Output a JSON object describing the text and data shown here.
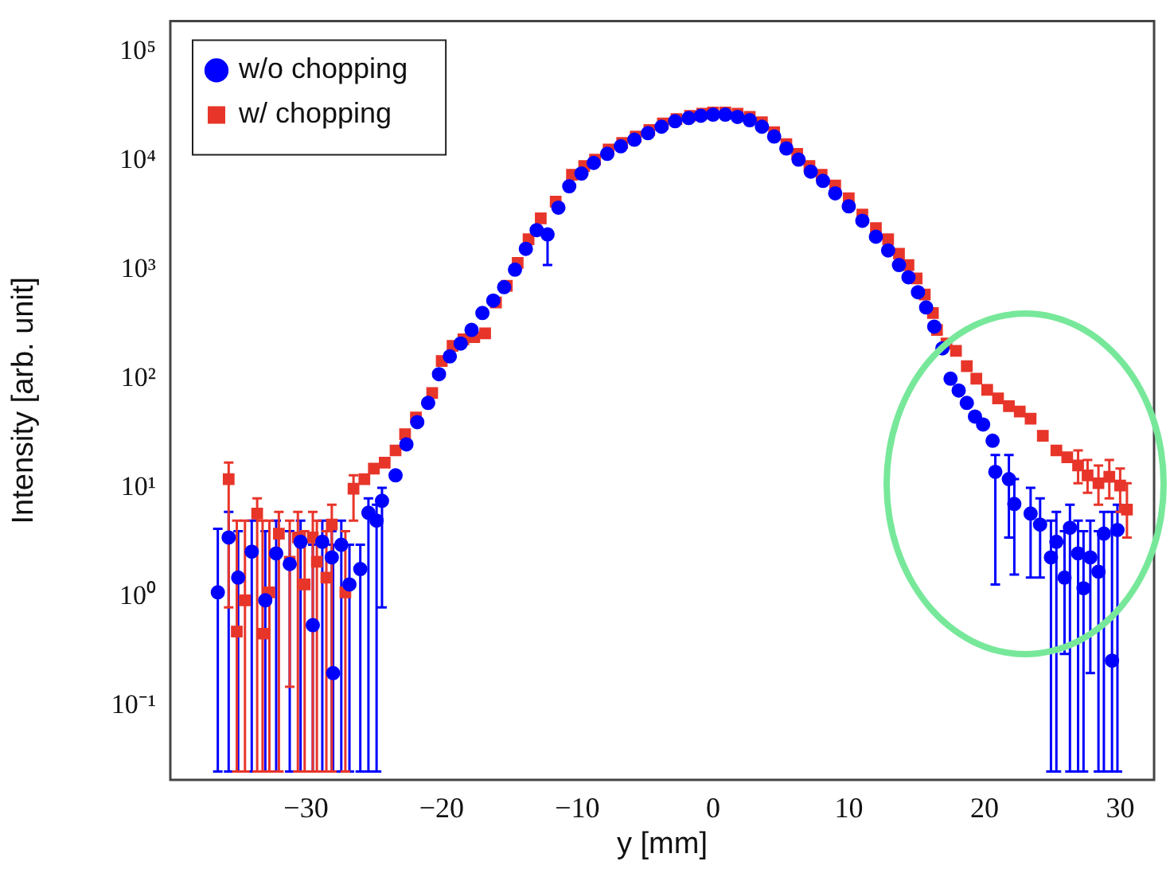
{
  "chart_data": {
    "type": "scatter",
    "xlabel": "y [mm]",
    "ylabel": "Intensity [arb. unit]",
    "log": "y",
    "xlim": [
      -40,
      32.5
    ],
    "ylim": [
      0.021,
      190000
    ],
    "xticks": [
      {
        "value": -30,
        "label": "−30"
      },
      {
        "value": -20,
        "label": "−20"
      },
      {
        "value": -10,
        "label": "−10"
      },
      0,
      10,
      20,
      30
    ],
    "yticks": [
      {
        "value": 0.1,
        "label": "10⁻¹"
      },
      {
        "value": 1,
        "label": "10⁰"
      },
      {
        "value": 10,
        "label": "10¹"
      },
      {
        "value": 100,
        "label": "10²"
      },
      {
        "value": 1000,
        "label": "10³"
      },
      {
        "value": 10000,
        "label": "10⁴"
      },
      {
        "value": 100000,
        "label": "10⁵"
      }
    ],
    "grid": false,
    "legend": "top left",
    "series": [
      {
        "name": "w/o chopping",
        "color": "#0000ff",
        "marker": "circle",
        "x": [
          -36.5,
          -35.7,
          -35.0,
          -34.0,
          -33.0,
          -32.2,
          -31.2,
          -30.4,
          -29.5,
          -28.8,
          -28.1,
          -28.0,
          -27.4,
          -26.8,
          -26.0,
          -25.4,
          -24.8,
          -24.4,
          -23.4,
          -22.6,
          -21.8,
          -21.0,
          -20.2,
          -19.4,
          -18.6,
          -17.8,
          -17.0,
          -16.2,
          -15.4,
          -14.6,
          -13.8,
          -13.0,
          -12.2,
          -11.4,
          -10.6,
          -9.7,
          -8.8,
          -7.8,
          -6.8,
          -5.8,
          -4.8,
          -3.8,
          -2.8,
          -1.8,
          -0.9,
          0,
          0.9,
          1.8,
          2.7,
          3.6,
          4.5,
          5.4,
          6.3,
          7.2,
          8.1,
          9.0,
          10.0,
          11.0,
          12.0,
          12.9,
          13.7,
          14.4,
          15.1,
          15.7,
          16.3,
          16.9,
          17.5,
          18.1,
          18.7,
          19.3,
          19.9,
          20.6,
          20.8,
          21.8,
          22.2,
          23.4,
          24.1,
          24.9,
          25.3,
          25.9,
          26.3,
          26.9,
          27.3,
          27.8,
          28.4,
          28.8,
          29.4,
          29.8
        ],
        "values": [
          1.1,
          3.5,
          1.5,
          2.6,
          0.93,
          2.5,
          2.0,
          3.2,
          0.55,
          3.2,
          2.3,
          0.2,
          3.0,
          1.3,
          1.8,
          5.9,
          5.0,
          7.6,
          13,
          25,
          40,
          60,
          110,
          160,
          210,
          280,
          400,
          520,
          690,
          1000,
          1550,
          2300,
          2100,
          3700,
          5800,
          7600,
          9500,
          11500,
          13500,
          15500,
          17800,
          20400,
          22900,
          24500,
          25700,
          26300,
          26300,
          25100,
          23400,
          20400,
          16600,
          12900,
          10200,
          7900,
          6500,
          5000,
          3800,
          2800,
          2000,
          1500,
          1100,
          850,
          620,
          450,
          300,
          190,
          100,
          78,
          60,
          45,
          38,
          27,
          14,
          12,
          7.1,
          5.8,
          4.6,
          2.3,
          3.2,
          1.5,
          4.3,
          2.5,
          1.2,
          2.3,
          1.7,
          3.8,
          0.26,
          4.1
        ],
        "errors": [
          [
            0.025,
            4.2
          ],
          [
            0.025,
            6
          ],
          [
            0.025,
            4
          ],
          [
            0.025,
            5
          ],
          [
            0.025,
            4
          ],
          [
            0.025,
            5
          ],
          [
            0.025,
            4
          ],
          [
            0.025,
            5
          ],
          [
            0.025,
            3
          ],
          [
            0.025,
            5
          ],
          [
            0.025,
            4
          ],
          [
            0.025,
            3
          ],
          [
            0.025,
            5
          ],
          [
            0.025,
            3
          ],
          [
            0.025,
            3
          ],
          [
            0.025,
            8
          ],
          [
            0.025,
            7
          ],
          [
            0.8,
            10
          ],
          null,
          null,
          null,
          null,
          null,
          null,
          null,
          null,
          null,
          null,
          null,
          null,
          null,
          null,
          [
            1100,
            2300
          ],
          null,
          null,
          null,
          null,
          null,
          null,
          null,
          null,
          null,
          null,
          null,
          null,
          null,
          null,
          null,
          null,
          null,
          null,
          null,
          null,
          null,
          null,
          null,
          null,
          null,
          null,
          null,
          null,
          null,
          null,
          null,
          null,
          null,
          null,
          null,
          null,
          null,
          null,
          null,
          [
            1.3,
            20
          ],
          [
            3.5,
            20
          ],
          [
            1.6,
            12
          ],
          [
            1.5,
            10
          ],
          [
            1.5,
            8
          ],
          [
            0.025,
            5
          ],
          [
            0.025,
            6
          ],
          [
            0.3,
            4
          ],
          [
            0.025,
            7
          ],
          [
            0.025,
            5
          ],
          [
            0.025,
            4
          ],
          [
            0.2,
            5
          ],
          [
            0.025,
            4
          ],
          [
            0.025,
            6
          ],
          [
            0.025,
            6
          ],
          [
            0.025,
            7
          ]
        ]
      },
      {
        "name": "w/ chopping",
        "color": "#e8352a",
        "marker": "square",
        "x": [
          -35.7,
          -35.1,
          -34.5,
          -33.6,
          -33.2,
          -32.7,
          -32.0,
          -31.2,
          -30.6,
          -30.1,
          -29.5,
          -29.2,
          -28.5,
          -28.1,
          -27.1,
          -26.5,
          -25.7,
          -25.0,
          -24.2,
          -23.4,
          -22.7,
          -21.9,
          -20.7,
          -20.0,
          -19.2,
          -18.4,
          -17.6,
          -16.8,
          -16.0,
          -15.2,
          -14.4,
          -13.6,
          -12.7,
          -11.6,
          -10.4,
          -9.5,
          -8.7,
          -7.7,
          -6.7,
          -5.7,
          -4.7,
          -3.7,
          -2.7,
          -1.7,
          -0.8,
          0,
          0.9,
          1.8,
          2.7,
          3.6,
          4.5,
          5.4,
          6.2,
          7.1,
          8.0,
          9.0,
          10.0,
          11.0,
          12.0,
          12.9,
          13.7,
          14.4,
          15.0,
          15.6,
          16.2,
          16.5,
          17.2,
          17.9,
          18.7,
          19.4,
          20.2,
          21.0,
          21.8,
          22.6,
          23.4,
          24.3,
          25.3,
          26.1,
          26.9,
          27.6,
          28.4,
          29.2,
          30.0,
          30.5
        ],
        "values": [
          12,
          0.48,
          0.93,
          5.8,
          0.46,
          1.1,
          3.8,
          2.1,
          3.5,
          1.3,
          3.5,
          2.1,
          1.5,
          4.6,
          1.1,
          9.8,
          12,
          15,
          17,
          22,
          31,
          44,
          74,
          145,
          200,
          230,
          240,
          260,
          500,
          710,
          1150,
          1900,
          2950,
          4200,
          7400,
          8900,
          10200,
          12600,
          14500,
          16600,
          19000,
          21900,
          24000,
          25700,
          26900,
          27500,
          27500,
          26900,
          25100,
          22400,
          18200,
          14100,
          11500,
          8900,
          7400,
          5900,
          4500,
          3200,
          2400,
          1900,
          1400,
          1100,
          830,
          590,
          400,
          280,
          210,
          180,
          130,
          100,
          79,
          66,
          56,
          50,
          43,
          30,
          22,
          19,
          16,
          13,
          11,
          12.6,
          10.5,
          6.3
        ],
        "errors": [
          [
            0.8,
            17
          ],
          [
            0.025,
            5
          ],
          [
            0.025,
            5
          ],
          [
            0.025,
            8
          ],
          [
            0.025,
            5
          ],
          [
            0.025,
            5
          ],
          [
            0.025,
            6
          ],
          [
            0.15,
            5
          ],
          [
            0.025,
            6
          ],
          [
            0.025,
            4
          ],
          [
            0.025,
            6
          ],
          [
            0.025,
            5
          ],
          [
            0.025,
            4
          ],
          [
            0.025,
            7
          ],
          [
            0.025,
            4
          ],
          [
            5,
            13
          ],
          null,
          null,
          null,
          null,
          null,
          null,
          null,
          null,
          null,
          null,
          null,
          null,
          null,
          null,
          null,
          null,
          null,
          null,
          null,
          null,
          null,
          null,
          null,
          null,
          null,
          null,
          null,
          null,
          null,
          null,
          null,
          null,
          null,
          null,
          null,
          null,
          null,
          null,
          null,
          null,
          null,
          null,
          null,
          null,
          null,
          null,
          null,
          null,
          null,
          null,
          null,
          null,
          null,
          null,
          null,
          null,
          null,
          null,
          null,
          null,
          null,
          null,
          [
            11,
            22
          ],
          [
            9,
            18
          ],
          [
            7,
            16
          ],
          [
            8,
            18
          ],
          [
            6,
            15
          ],
          [
            3.5,
            11
          ]
        ]
      }
    ]
  }
}
